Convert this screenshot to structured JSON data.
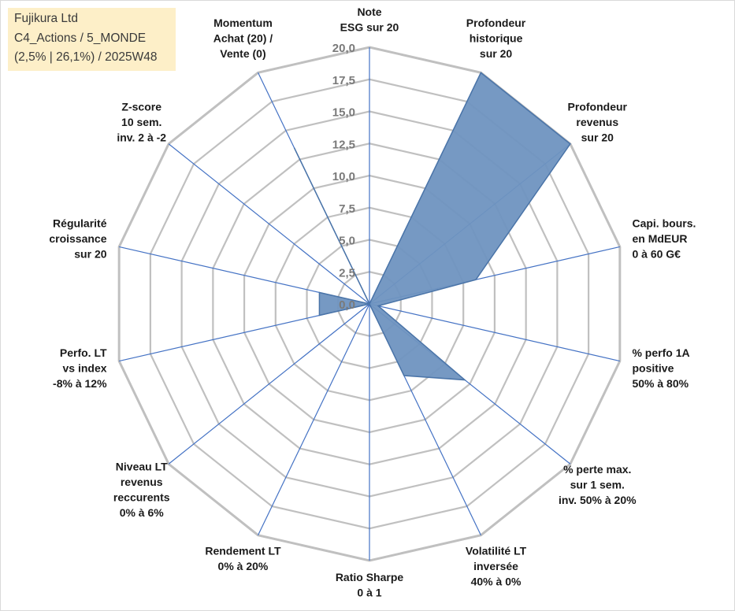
{
  "info": {
    "line1": "Fujikura Ltd",
    "line2": "C4_Actions / 5_MONDE",
    "line3": "(2,5% | 26,1%) / 2025W48"
  },
  "chart_data": {
    "type": "radar",
    "title": "Fujikura Ltd",
    "rmin": 0,
    "rmax": 20,
    "tick_step": 2.5,
    "tick_labels": [
      "0,0",
      "2,5",
      "5,0",
      "7,5",
      "10,0",
      "12,5",
      "15,0",
      "17,5",
      "20,0"
    ],
    "grid": true,
    "axes": [
      {
        "label": [
          "Note",
          "ESG sur 20"
        ]
      },
      {
        "label": [
          "Profondeur",
          "historique",
          "sur 20"
        ]
      },
      {
        "label": [
          "Profondeur",
          "revenus",
          "sur 20"
        ]
      },
      {
        "label": [
          "Capi. bours.",
          "en MdEUR",
          "0 à 60 G€"
        ]
      },
      {
        "label": [
          "% perfo 1A",
          "positive",
          "50% à 80%"
        ]
      },
      {
        "label": [
          "% perte max.",
          "sur 1 sem.",
          "inv. 50% à 20%"
        ]
      },
      {
        "label": [
          "Volatilité LT",
          "inversée",
          "40% à 0%"
        ]
      },
      {
        "label": [
          "Ratio Sharpe",
          "0 à 1"
        ]
      },
      {
        "label": [
          "Rendement LT",
          "0% à 20%"
        ]
      },
      {
        "label": [
          "Niveau LT",
          "revenus",
          "reccurents",
          "0% à 6%"
        ]
      },
      {
        "label": [
          "Perfo. LT",
          "vs index",
          "-8% à 12%"
        ]
      },
      {
        "label": [
          "Régularité",
          "croissance",
          "sur 20"
        ]
      },
      {
        "label": [
          "Z-score",
          "10 sem.",
          "inv. 2 à -2"
        ]
      },
      {
        "label": [
          "Momentum",
          "Achat (20) /",
          "Vente (0)"
        ]
      }
    ],
    "series": [
      {
        "name": "Fujikura Ltd",
        "color": "#5b86b8",
        "values": [
          0,
          20,
          20,
          8.5,
          0.7,
          9.5,
          6.2,
          0,
          0,
          0,
          4,
          4,
          0,
          13.5
        ]
      }
    ]
  },
  "colors": {
    "fill": "#6f94c0",
    "stroke": "#4a74a8",
    "grid": "#c0c0c0",
    "spoke": "#4472c4",
    "info_bg": "#fdefc8"
  }
}
